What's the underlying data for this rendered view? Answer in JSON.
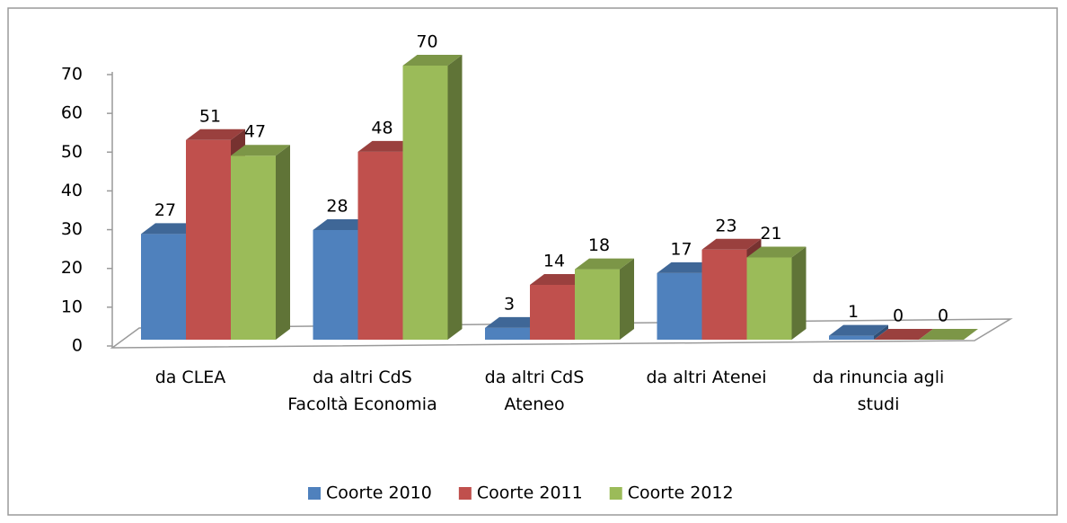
{
  "chart_data": {
    "type": "bar3d",
    "categories": [
      "da CLEA",
      "da altri CdS Facoltà Economia",
      "da altri CdS Ateneo",
      "da altri Atenei",
      "da rinuncia agli studi"
    ],
    "series": [
      {
        "name": "Coorte 2010",
        "color": "#4f81bd",
        "values": [
          27,
          28,
          3,
          17,
          1
        ]
      },
      {
        "name": "Coorte 2011",
        "color": "#c0504d",
        "values": [
          51,
          48,
          14,
          23,
          0
        ]
      },
      {
        "name": "Coorte 2012",
        "color": "#9bbb59",
        "values": [
          47,
          70,
          18,
          21,
          0
        ]
      }
    ],
    "ylim": [
      0,
      70
    ],
    "yticks": [
      0,
      10,
      20,
      30,
      40,
      50,
      60,
      70
    ],
    "legend": "bottom"
  }
}
